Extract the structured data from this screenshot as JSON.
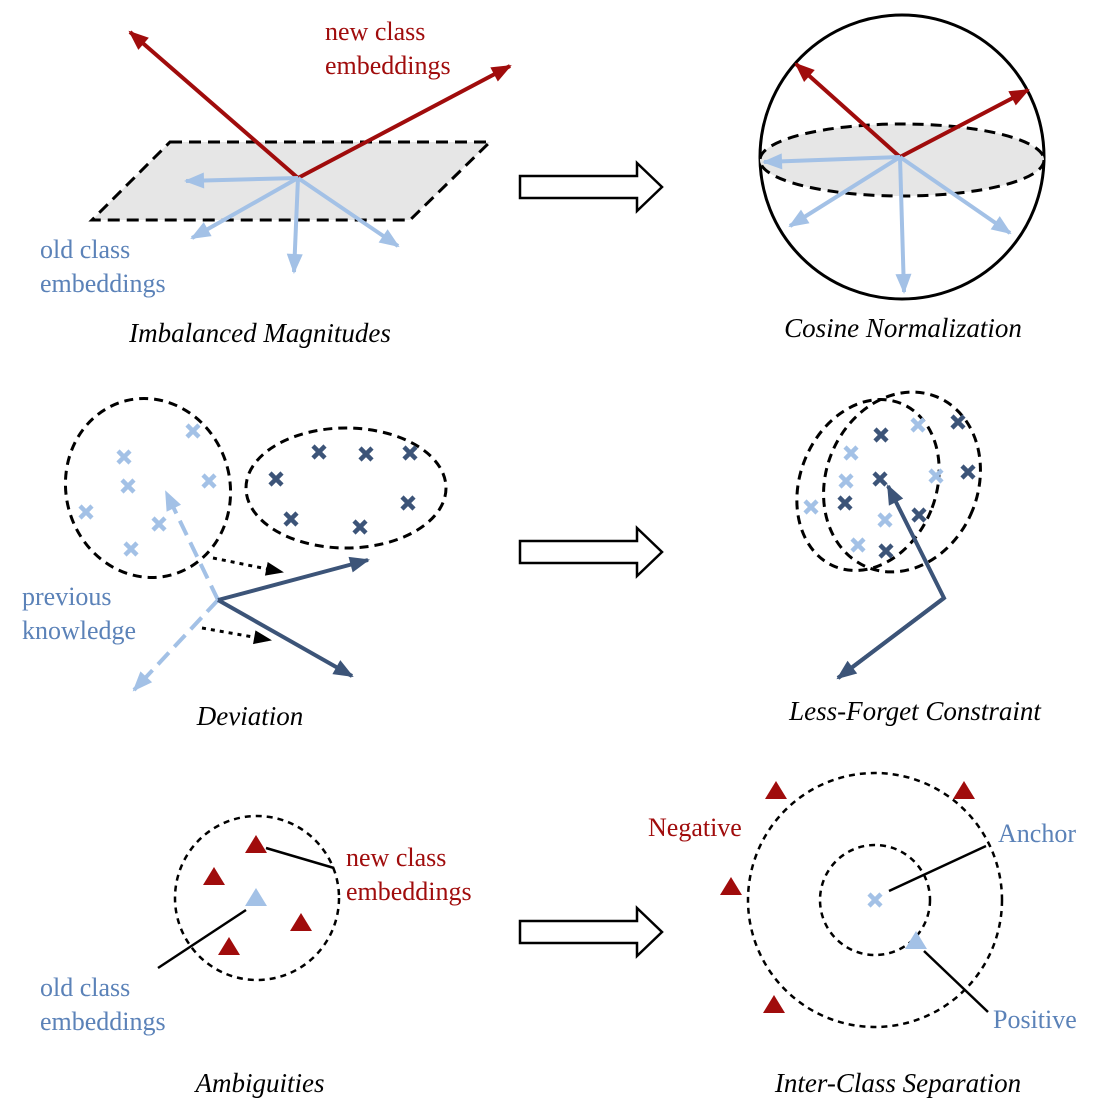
{
  "colors": {
    "red": "#a00c0c",
    "light_blue": "#a3c1e6",
    "dark_blue": "#3c5478",
    "label_blue": "#5b82b8",
    "plane_fill": "#e6e6e6",
    "outline": "#000000"
  },
  "panels": {
    "imbalanced": {
      "caption": "Imbalanced Magnitudes",
      "new_label": [
        "new class",
        "embeddings"
      ],
      "old_label": [
        "old class",
        "embeddings"
      ]
    },
    "cosine": {
      "caption": "Cosine Normalization"
    },
    "deviation": {
      "caption": "Deviation",
      "prev_label": [
        "previous",
        "knowledge"
      ]
    },
    "lessforget": {
      "caption": "Less-Forget Constraint"
    },
    "ambiguities": {
      "caption": "Ambiguities",
      "new_label": [
        "new class",
        "embeddings"
      ],
      "old_label": [
        "old class",
        "embeddings"
      ]
    },
    "interclass": {
      "caption": "Inter-Class Separation",
      "negative_label": "Negative",
      "anchor_label": "Anchor",
      "positive_label": "Positive"
    }
  },
  "icons": [
    "arrow-right-icon",
    "cross-marker",
    "triangle-marker"
  ]
}
